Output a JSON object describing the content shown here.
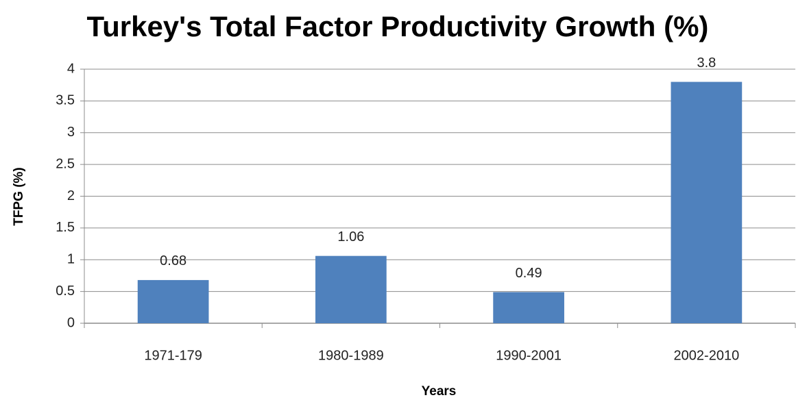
{
  "chart_data": {
    "type": "bar",
    "title": "Turkey's Total Factor Productivity Growth (%)",
    "x_label": "Years",
    "y_label": "TFPG (%)",
    "categories": [
      "1971-179",
      "1980-1989",
      "1990-2001",
      "2002-2010"
    ],
    "values": [
      0.68,
      1.06,
      0.49,
      3.8
    ],
    "color": "#4f81bd",
    "ylim": [
      0,
      4
    ],
    "yticks": [
      0,
      0.5,
      1,
      1.5,
      2,
      2.5,
      3,
      3.5,
      4
    ],
    "grid": true
  }
}
